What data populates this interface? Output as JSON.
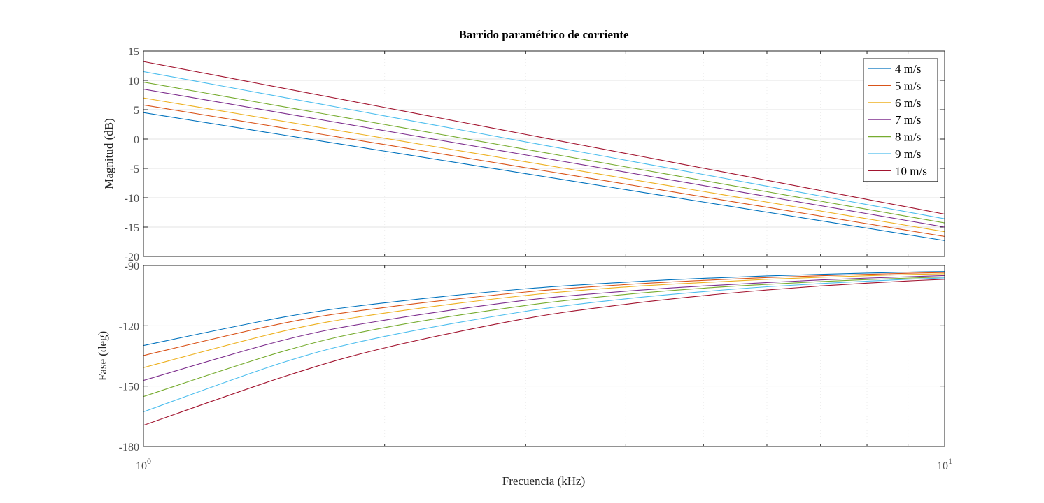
{
  "chart_data": {
    "type": "line",
    "title": "Barrido paramétrico de corriente",
    "xlabel": "Frecuencia  (kHz)",
    "xscale": "log",
    "xlim": [
      1,
      10
    ],
    "x_tick_labels": [
      {
        "base": "10",
        "exp": "0",
        "value": 1
      },
      {
        "base": "10",
        "exp": "1",
        "value": 10
      }
    ],
    "grid": true,
    "legend_position": "top-right",
    "colors": [
      "#0072bd",
      "#d95319",
      "#edb120",
      "#7e2f8e",
      "#77ac30",
      "#4dbeee",
      "#a2142f"
    ],
    "panels": [
      {
        "ylabel": "Magnitud (dB)",
        "ylim": [
          -20,
          15
        ],
        "yticks": [
          -20,
          -15,
          -10,
          -5,
          0,
          5,
          10,
          15
        ],
        "y_tick_labels": [
          "-20",
          "-15",
          "-10",
          "-5",
          "0",
          "5",
          "10",
          "15"
        ],
        "series": [
          {
            "name": "4 m/s",
            "x": [
              1,
              10
            ],
            "y": [
              4.5,
              -17.3
            ]
          },
          {
            "name": "5 m/s",
            "x": [
              1,
              10
            ],
            "y": [
              5.8,
              -16.6
            ]
          },
          {
            "name": "6 m/s",
            "x": [
              1,
              10
            ],
            "y": [
              7.0,
              -15.8
            ]
          },
          {
            "name": "7 m/s",
            "x": [
              1,
              10
            ],
            "y": [
              8.5,
              -15.0
            ]
          },
          {
            "name": "8 m/s",
            "x": [
              1,
              10
            ],
            "y": [
              9.7,
              -14.3
            ]
          },
          {
            "name": "9 m/s",
            "x": [
              1,
              10
            ],
            "y": [
              11.5,
              -13.6
            ]
          },
          {
            "name": "10 m/s",
            "x": [
              1,
              10
            ],
            "y": [
              13.2,
              -12.8
            ]
          }
        ]
      },
      {
        "ylabel": "Fase (deg)",
        "ylim": [
          -180,
          -90
        ],
        "yticks": [
          -180,
          -150,
          -120,
          -90
        ],
        "y_tick_labels": [
          "-180",
          "-150",
          "-120",
          "-90"
        ],
        "series": [
          {
            "name": "4 m/s",
            "x": [
              1,
              1.5,
              2,
              3,
              4,
              5,
              6,
              7,
              8,
              9,
              10
            ],
            "y": [
              -129.8,
              -115.6,
              -108.6,
              -101.6,
              -98.3,
              -96.4,
              -95.2,
              -94.4,
              -93.8,
              -93.3,
              -93.0
            ]
          },
          {
            "name": "5 m/s",
            "x": [
              1,
              1.5,
              2,
              3,
              4,
              5,
              6,
              7,
              8,
              9,
              10
            ],
            "y": [
              -134.8,
              -118.6,
              -110.9,
              -103.2,
              -99.5,
              -97.4,
              -96.0,
              -95.1,
              -94.4,
              -93.9,
              -93.5
            ]
          },
          {
            "name": "6 m/s",
            "x": [
              1,
              1.5,
              2,
              3,
              4,
              5,
              6,
              7,
              8,
              9,
              10
            ],
            "y": [
              -140.8,
              -122.5,
              -113.7,
              -104.9,
              -100.7,
              -98.5,
              -96.9,
              -95.9,
              -95.1,
              -94.5,
              -94.1
            ]
          },
          {
            "name": "7 m/s",
            "x": [
              1,
              1.5,
              2,
              3,
              4,
              5,
              6,
              7,
              8,
              9,
              10
            ],
            "y": [
              -147.2,
              -127.0,
              -117.2,
              -107.3,
              -102.8,
              -100.2,
              -98.5,
              -97.2,
              -96.3,
              -95.6,
              -95.0
            ]
          },
          {
            "name": "8 m/s",
            "x": [
              1,
              1.5,
              2,
              3,
              4,
              5,
              6,
              7,
              8,
              9,
              10
            ],
            "y": [
              -155.2,
              -132.5,
              -120.9,
              -109.9,
              -104.4,
              -101.3,
              -99.4,
              -98.0,
              -97.0,
              -96.3,
              -95.7
            ]
          },
          {
            "name": "9 m/s",
            "x": [
              1,
              1.5,
              2,
              3,
              4,
              5,
              6,
              7,
              8,
              9,
              10
            ],
            "y": [
              -162.8,
              -138.0,
              -125.3,
              -112.8,
              -106.6,
              -103.0,
              -100.6,
              -99.0,
              -97.8,
              -96.9,
              -96.2
            ]
          },
          {
            "name": "10 m/s",
            "x": [
              1,
              1.5,
              2,
              3,
              4,
              5,
              6,
              7,
              8,
              9,
              10
            ],
            "y": [
              -169.5,
              -145.2,
              -131.0,
              -116.4,
              -109.3,
              -105.0,
              -102.2,
              -100.2,
              -98.8,
              -97.7,
              -96.9
            ]
          }
        ]
      }
    ]
  }
}
